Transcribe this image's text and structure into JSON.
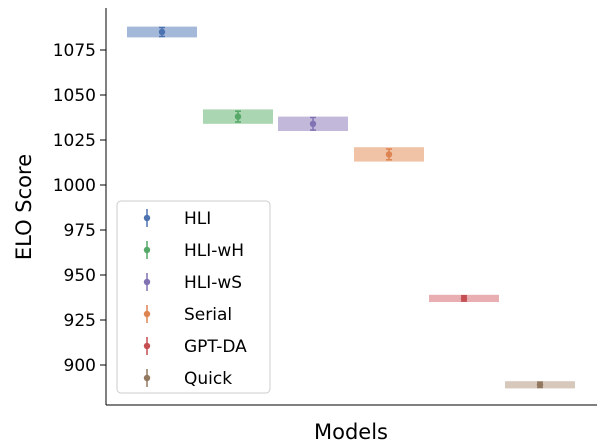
{
  "chart_data": {
    "type": "scatter",
    "xlabel": "Models",
    "ylabel": "ELO Score",
    "ylim": [
      880,
      1100
    ],
    "x_ticks": "none",
    "grid": false,
    "legend_placement": "lower-left",
    "yticks": [
      {
        "value": 900,
        "label": "900"
      },
      {
        "value": 925,
        "label": "925"
      },
      {
        "value": 950,
        "label": "950"
      },
      {
        "value": 975,
        "label": "975"
      },
      {
        "value": 1000,
        "label": "1000"
      },
      {
        "value": 1025,
        "label": "1025"
      },
      {
        "value": 1050,
        "label": "1050"
      },
      {
        "value": 1075,
        "label": "1075"
      }
    ],
    "series": [
      {
        "name": "HLI",
        "elo": 1085,
        "ci_low": 1082,
        "ci_high": 1088,
        "err": 2.5,
        "color": "#4c72b0",
        "band_color": "#a4b8da"
      },
      {
        "name": "HLI-wH",
        "elo": 1038,
        "ci_low": 1034,
        "ci_high": 1042,
        "err": 3.0,
        "color": "#55a868",
        "band_color": "#aad6b1"
      },
      {
        "name": "HLI-wS",
        "elo": 1034,
        "ci_low": 1030,
        "ci_high": 1038,
        "err": 3.5,
        "color": "#8172b3",
        "band_color": "#c2b9da"
      },
      {
        "name": "Serial",
        "elo": 1017,
        "ci_low": 1013,
        "ci_high": 1021,
        "err": 3.0,
        "color": "#dd8452",
        "band_color": "#f0c2a6"
      },
      {
        "name": "GPT-DA",
        "elo": 937,
        "ci_low": 935,
        "ci_high": 939,
        "err": 1.5,
        "color": "#c44e52",
        "band_color": "#e9aeb1"
      },
      {
        "name": "Quick",
        "elo": 889,
        "ci_low": 887,
        "ci_high": 891,
        "err": 1.5,
        "color": "#937860",
        "band_color": "#d7c8bc"
      }
    ]
  }
}
